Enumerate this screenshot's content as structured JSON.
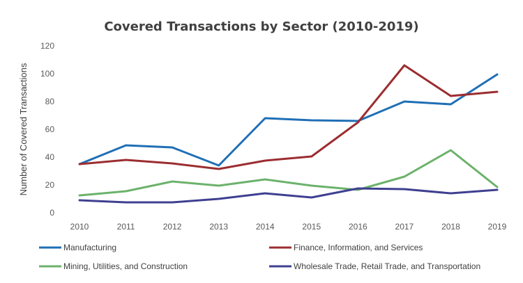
{
  "chart_data": {
    "type": "line",
    "title": "Covered Transactions by Sector (2010-2019)",
    "xlabel": "",
    "ylabel": "Number of Covered Transactions",
    "x": [
      "2010",
      "2011",
      "2012",
      "2013",
      "2014",
      "2015",
      "2016",
      "2017",
      "2018",
      "2019"
    ],
    "ylim": [
      0,
      120
    ],
    "yticks": [
      "0",
      "20",
      "40",
      "60",
      "80",
      "100",
      "120"
    ],
    "grid": false,
    "legend_position": "bottom",
    "series": [
      {
        "name": "Manufacturing",
        "color": "#1f6fb5",
        "values": [
          35,
          48.5,
          47,
          34,
          68,
          66.5,
          66,
          80,
          78,
          99.5
        ]
      },
      {
        "name": "Finance, Information, and Services",
        "color": "#9b2d30",
        "values": [
          35,
          38,
          35.5,
          31.5,
          37.5,
          40.5,
          65,
          106,
          84,
          87
        ]
      },
      {
        "name": "Mining, Utilities, and Construction",
        "color": "#6bb26b",
        "values": [
          12.5,
          15.5,
          22.5,
          19.5,
          24,
          19.5,
          16.5,
          26,
          45,
          18.5
        ]
      },
      {
        "name": "Wholesale Trade, Retail Trade, and Transportation",
        "color": "#3f3f91",
        "values": [
          9,
          7.5,
          7.5,
          10,
          14,
          11,
          17.5,
          17,
          14,
          16.5
        ]
      }
    ]
  }
}
